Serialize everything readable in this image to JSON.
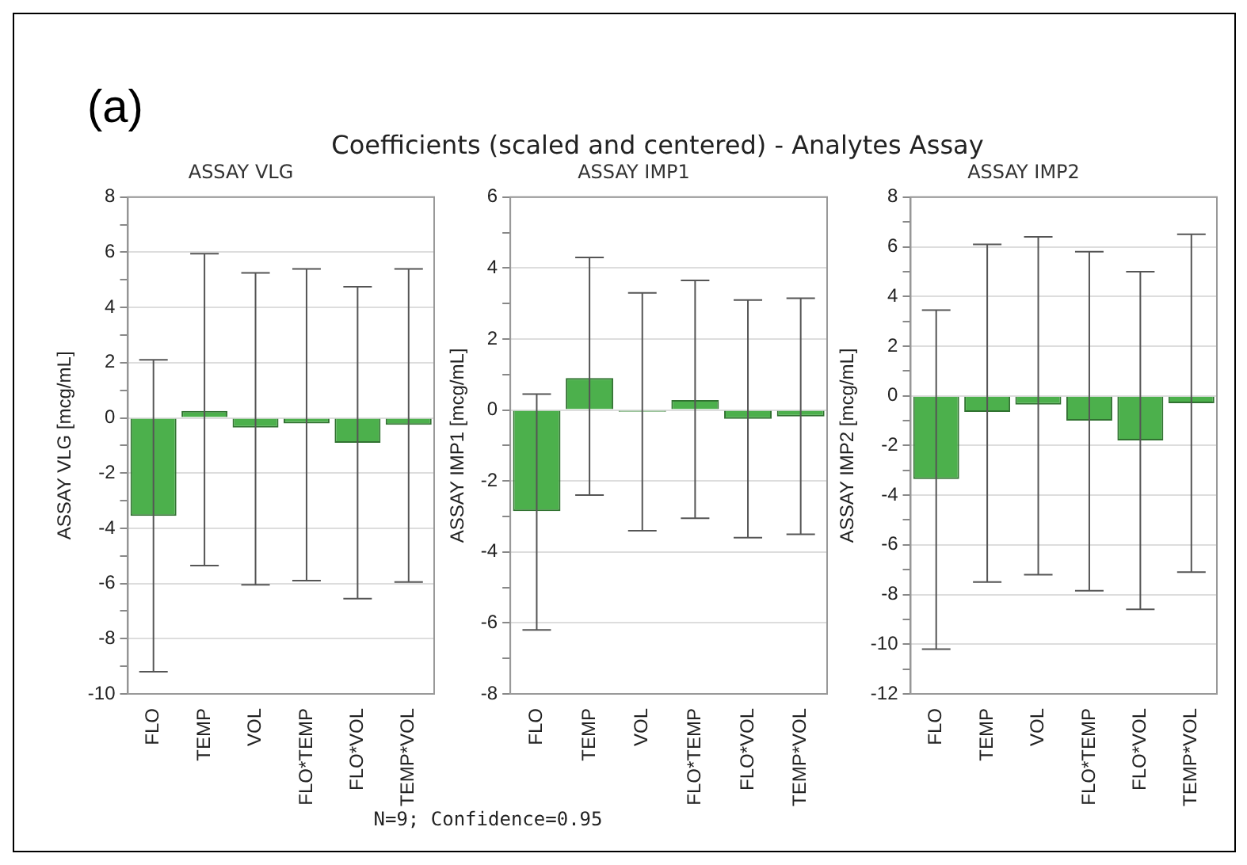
{
  "chart_data": [
    {
      "type": "bar",
      "title": "ASSAY VLG",
      "ylabel": "ASSAY VLG [mcg/mL]",
      "annotations": [
        "(a)"
      ],
      "categories": [
        "FLO",
        "TEMP",
        "VOL",
        "FLO*TEMP",
        "FLO*VOL",
        "TEMP*VOL"
      ],
      "values": [
        -3.55,
        0.25,
        -0.35,
        -0.2,
        -0.9,
        -0.25
      ],
      "color": "#4cb04c",
      "errors": [
        [
          -9.2,
          2.1
        ],
        [
          -5.35,
          5.95
        ],
        [
          -6.05,
          5.25
        ],
        [
          -5.9,
          5.4
        ],
        [
          -6.55,
          4.75
        ],
        [
          -5.95,
          5.4
        ]
      ],
      "ylim": [
        -10,
        8
      ],
      "yticks": [
        -10,
        {
          "value": -9,
          "label": null
        },
        -8,
        {
          "value": -7,
          "label": null
        },
        -6,
        {
          "value": -5,
          "label": null
        },
        -4,
        {
          "value": -3,
          "label": null
        },
        -2,
        {
          "value": -1,
          "label": null
        },
        0,
        {
          "value": 1,
          "label": null
        },
        2,
        {
          "value": 3,
          "label": null
        },
        4,
        {
          "value": 5,
          "label": null
        },
        6,
        {
          "value": 7,
          "label": null
        },
        8
      ],
      "grid": "y"
    },
    {
      "type": "bar",
      "title": "ASSAY IMP1",
      "ylabel": "ASSAY IMP1 [mcg/mL]",
      "annotations": [
        "Coefficients (scaled and centered) - Analytes Assay",
        "N=9; Confidence=0.95"
      ],
      "categories": [
        "FLO",
        "TEMP",
        "VOL",
        "FLO*TEMP",
        "FLO*VOL",
        "TEMP*VOL"
      ],
      "values": [
        -2.85,
        0.9,
        -0.05,
        0.28,
        -0.25,
        -0.18
      ],
      "color": "#4cb04c",
      "errors": [
        [
          -6.2,
          0.45
        ],
        [
          -2.4,
          4.3
        ],
        [
          -3.4,
          3.3
        ],
        [
          -3.05,
          3.65
        ],
        [
          -3.6,
          3.1
        ],
        [
          -3.5,
          3.15
        ]
      ],
      "ylim": [
        -8,
        6
      ],
      "yticks": [
        -8,
        {
          "value": -7,
          "label": null
        },
        -6,
        {
          "value": -5,
          "label": null
        },
        -4,
        {
          "value": -3,
          "label": null
        },
        -2,
        {
          "value": -1,
          "label": null
        },
        0,
        {
          "value": 1,
          "label": null
        },
        2,
        {
          "value": 3,
          "label": null
        },
        4,
        {
          "value": 5,
          "label": null
        },
        6
      ],
      "grid": "y"
    },
    {
      "type": "bar",
      "title": "ASSAY IMP2",
      "ylabel": "ASSAY IMP2 [mcg/mL]",
      "categories": [
        "FLO",
        "TEMP",
        "VOL",
        "FLO*TEMP",
        "FLO*VOL",
        "TEMP*VOL"
      ],
      "values": [
        -3.35,
        -0.65,
        -0.35,
        -1.0,
        -1.8,
        -0.3
      ],
      "color": "#4cb04c",
      "errors": [
        [
          -10.2,
          3.45
        ],
        [
          -7.5,
          6.1
        ],
        [
          -7.2,
          6.4
        ],
        [
          -7.85,
          5.8
        ],
        [
          -8.6,
          5.0
        ],
        [
          -7.1,
          6.5
        ]
      ],
      "ylim": [
        -12,
        8
      ],
      "yticks": [
        -12,
        {
          "value": -11,
          "label": null
        },
        -10,
        {
          "value": -9,
          "label": null
        },
        -8,
        {
          "value": -7,
          "label": null
        },
        -6,
        {
          "value": -5,
          "label": null
        },
        -4,
        {
          "value": -3,
          "label": null
        },
        -2,
        {
          "value": -1,
          "label": null
        },
        0,
        {
          "value": 1,
          "label": null
        },
        2,
        {
          "value": 3,
          "label": null
        },
        4,
        {
          "value": 5,
          "label": null
        },
        6,
        {
          "value": 7,
          "label": null
        },
        8
      ],
      "grid": "y"
    }
  ]
}
